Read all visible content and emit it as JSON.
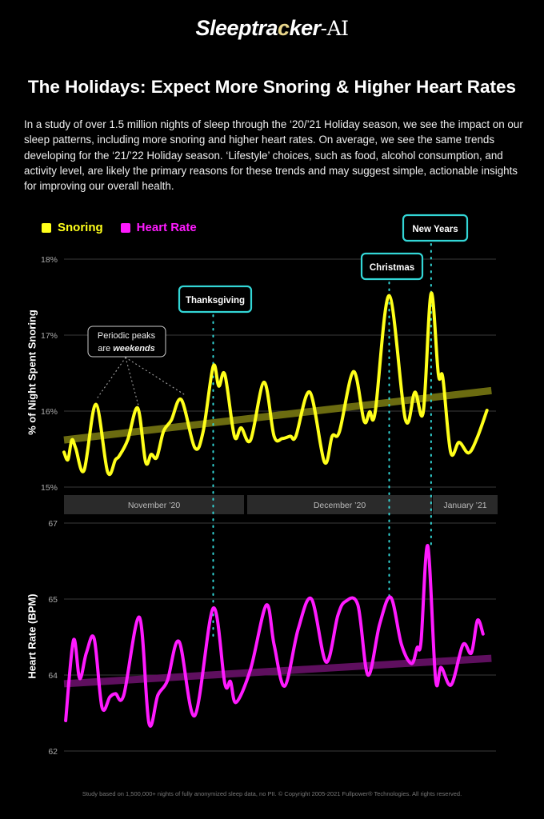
{
  "brand": {
    "name_main": "Sleeptra",
    "name_c": "c",
    "name_rest": "ker",
    "name_ai": "-AI"
  },
  "title": "The Holidays: Expect More Snoring & Higher Heart Rates",
  "intro": "In a study of over 1.5 million nights of sleep through the ‘20/’21 Holiday season, we see the impact on our sleep patterns, including more snoring and higher heart rates. On average, we see the same trends developing for the ‘21/’22 Holiday season. ‘Lifestyle’ choices, such as food, alcohol consumption, and activity level, are likely the primary reasons for these trends and may suggest simple, actionable insights for improving our overall health.",
  "footer": "Study based on 1,500,000+ nights of fully anonymized sleep data, no PII. © Copyright 2005-2021 Fullpower® Technologies. All rights reserved.",
  "colors": {
    "snoring": "#ffff1a",
    "heart_rate": "#ff1aff",
    "annotation": "#33d6d6",
    "grid": "#3a3a3a",
    "month_band": "#2a2a2a"
  },
  "legend": [
    {
      "label": "Snoring",
      "color": "#ffff1a"
    },
    {
      "label": "Heart Rate",
      "color": "#ff1aff"
    }
  ],
  "chart_data": [
    {
      "type": "line",
      "title": "Snoring",
      "ylabel": "% of Night Spent Snoring",
      "xlabel": "",
      "x_unit": "days since Nov 1 '20",
      "xlim": [
        0,
        77
      ],
      "ylim": [
        15,
        18
      ],
      "yticks": [
        {
          "value": 15,
          "label": "15%"
        },
        {
          "value": 16,
          "label": "16%"
        },
        {
          "value": 17,
          "label": "17%"
        },
        {
          "value": 18,
          "label": "18%"
        }
      ],
      "grid": true,
      "trend": {
        "start": [
          0,
          15.62
        ],
        "end": [
          76.5,
          16.27
        ]
      },
      "series": [
        {
          "name": "Snoring",
          "x": [
            0,
            0.7,
            1.4,
            2.1,
            3.6,
            5.7,
            7.8,
            9.2,
            9.9,
            11.4,
            13.2,
            14.6,
            15.6,
            16.6,
            17.8,
            19.2,
            21,
            23.4,
            24.9,
            26.7,
            27.7,
            28.8,
            30.5,
            31.7,
            33.4,
            35.8,
            37.6,
            39.1,
            40.5,
            41.5,
            44,
            46.6,
            48,
            49.3,
            51.8,
            53.7,
            54.7,
            55.7,
            58.2,
            61.1,
            62.8,
            64.3,
            65.7,
            67,
            67.8,
            69.2,
            70.7,
            72.4,
            73.9,
            75.7
          ],
          "values": [
            15.46,
            15.36,
            15.62,
            15.51,
            15.22,
            16.09,
            15.2,
            15.36,
            15.41,
            15.62,
            16.04,
            15.33,
            15.43,
            15.39,
            15.73,
            15.88,
            16.15,
            15.52,
            15.73,
            16.59,
            16.33,
            16.48,
            15.67,
            15.78,
            15.62,
            16.38,
            15.67,
            15.64,
            15.67,
            15.67,
            16.25,
            15.33,
            15.67,
            15.73,
            16.52,
            15.87,
            15.99,
            15.99,
            17.52,
            15.89,
            16.25,
            15.99,
            17.55,
            16.48,
            16.44,
            15.46,
            15.59,
            15.45,
            15.64,
            16.01
          ]
        }
      ]
    },
    {
      "type": "line",
      "title": "Heart Rate",
      "ylabel": "Heart Rate (BPM)",
      "xlabel": "",
      "x_unit": "days since Nov 1 '20",
      "xlim": [
        0,
        77
      ],
      "yticks": [
        {
          "value": 62,
          "label": "62"
        },
        {
          "value": 64,
          "label": "64"
        },
        {
          "value": 65,
          "label": "65"
        },
        {
          "value": 67,
          "label": "67"
        }
      ],
      "grid": true,
      "trend": {
        "start": [
          0,
          63.77
        ],
        "end": [
          76.5,
          64.22
        ]
      },
      "series": [
        {
          "name": "Heart Rate",
          "x": [
            0.3,
            1.7,
            2.8,
            4,
            5.4,
            6.8,
            8.2,
            9.2,
            10.7,
            13.5,
            15.2,
            16.8,
            18.5,
            20.6,
            23.4,
            26.7,
            28.8,
            29.8,
            30.8,
            33.4,
            36.2,
            37.6,
            39.5,
            41.9,
            44.3,
            46.9,
            49,
            50.4,
            52.6,
            54.4,
            56.5,
            58.5,
            60.4,
            62.2,
            63.2,
            63.9,
            65.1,
            66.5,
            67.5,
            69.3,
            71.4,
            72.9,
            74,
            75
          ],
          "values": [
            62.8,
            64.46,
            63.91,
            64.29,
            64.48,
            63.15,
            63.42,
            63.51,
            63.47,
            64.76,
            62.73,
            63.47,
            63.85,
            64.44,
            62.93,
            64.88,
            63.77,
            63.83,
            63.28,
            64.08,
            64.92,
            64.4,
            63.71,
            64.6,
            65.0,
            64.17,
            64.78,
            64.97,
            64.92,
            64.0,
            64.67,
            65.04,
            64.4,
            64.15,
            64.36,
            64.44,
            66.4,
            63.89,
            64.1,
            63.74,
            64.4,
            64.29,
            64.72,
            64.54
          ]
        }
      ]
    }
  ],
  "months": [
    {
      "label": "November ’20"
    },
    {
      "label": "December ’20"
    },
    {
      "label": "January ’21"
    }
  ],
  "annotations": {
    "weekends": {
      "line1": "Periodic peaks",
      "line2_prefix": "are ",
      "line2_em": "weekends"
    },
    "events": [
      {
        "label": "Thanksgiving",
        "day": 26.7
      },
      {
        "label": "Christmas",
        "day": 58.2
      },
      {
        "label": "New Years",
        "day": 65.7
      }
    ]
  }
}
